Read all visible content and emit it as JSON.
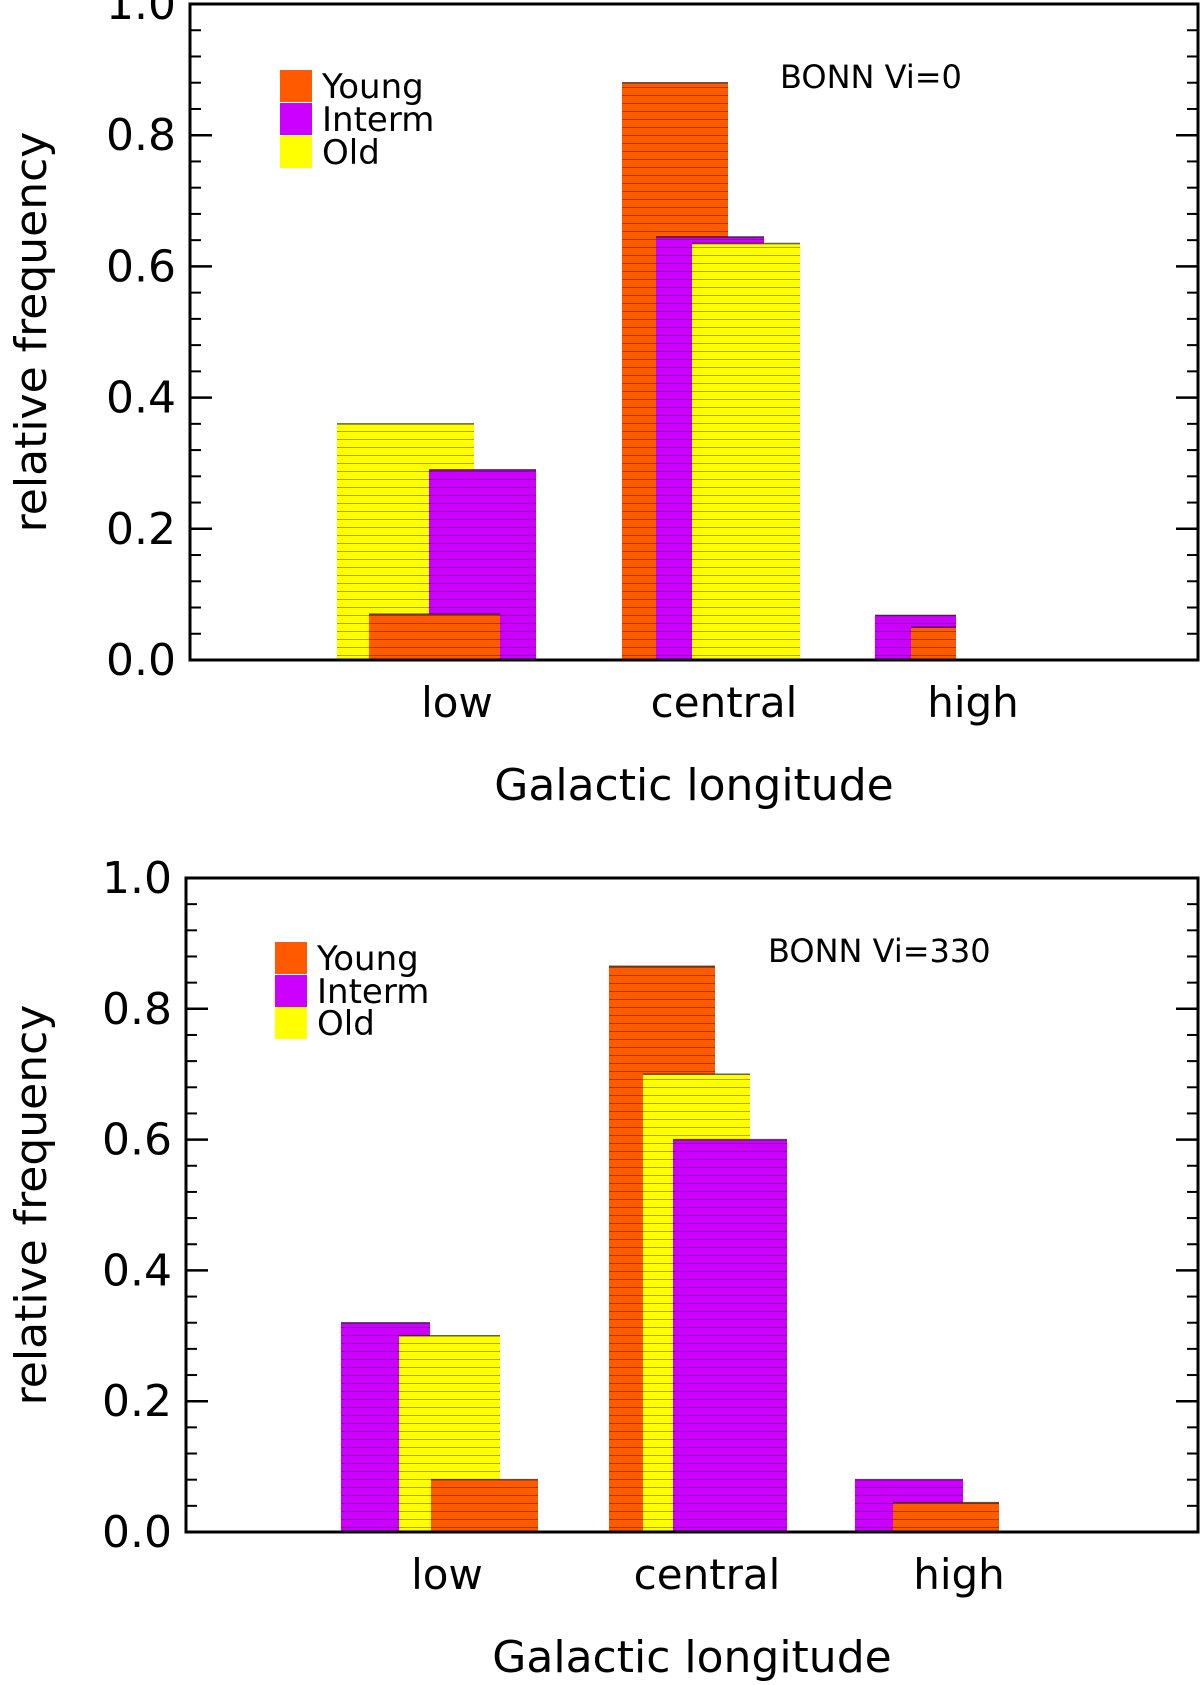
{
  "chart_data": [
    {
      "type": "bar",
      "annotation": "BONN Vi=0",
      "xlabel": "Galactic longitude",
      "ylabel": "relative frequency",
      "ylim": [
        0,
        1.0
      ],
      "yticks": [
        "0.0",
        "0.2",
        "0.4",
        "0.6",
        "0.8",
        "1.0"
      ],
      "categories": [
        "low",
        "central",
        "high"
      ],
      "legend_position": "top-left",
      "series": [
        {
          "name": "Young",
          "color": "#ff5a00",
          "values": [
            0.07,
            0.88,
            0.05
          ]
        },
        {
          "name": "Interm",
          "color": "#cc00ff",
          "values": [
            0.29,
            0.645,
            0.068
          ]
        },
        {
          "name": "Old",
          "color": "#ffff00",
          "values": [
            0.36,
            0.635,
            0.0
          ]
        }
      ]
    },
    {
      "type": "bar",
      "annotation": "BONN Vi=330",
      "xlabel": "Galactic longitude",
      "ylabel": "relative frequency",
      "ylim": [
        0,
        1.0
      ],
      "yticks": [
        "0.0",
        "0.2",
        "0.4",
        "0.6",
        "0.8",
        "1.0"
      ],
      "categories": [
        "low",
        "central",
        "high"
      ],
      "legend_position": "top-left",
      "series": [
        {
          "name": "Young",
          "color": "#ff5a00",
          "values": [
            0.08,
            0.865,
            0.045
          ]
        },
        {
          "name": "Interm",
          "color": "#cc00ff",
          "values": [
            0.32,
            0.6,
            0.08
          ]
        },
        {
          "name": "Old",
          "color": "#ffff00",
          "values": [
            0.3,
            0.7,
            0.0
          ]
        }
      ]
    }
  ]
}
